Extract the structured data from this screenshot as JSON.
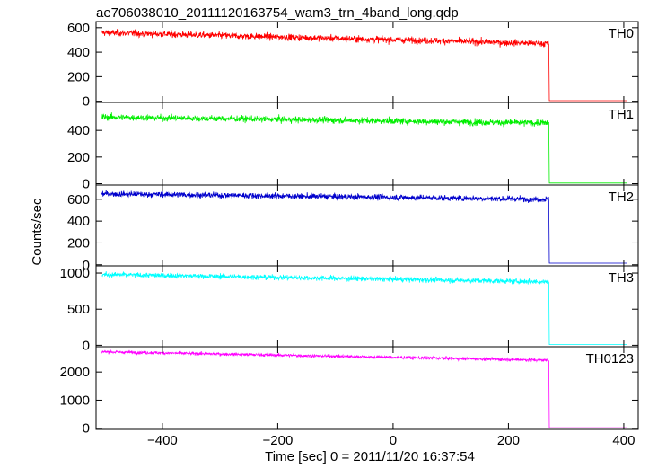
{
  "chart_data": {
    "type": "line",
    "title": "ae706038010_20111120163754_wam3_trn_4band_long.qdp",
    "xlabel": "Time [sec] 0 = 2011/11/20 16:37:54",
    "ylabel": "Counts/sec",
    "xlim": [
      -515,
      425
    ],
    "x_ticks": [
      -400,
      -200,
      0,
      200,
      400
    ],
    "x_tick_labels": [
      "−400",
      "−200",
      "0",
      "200",
      "400"
    ],
    "grid": false,
    "step_time": 270,
    "x_start": -505,
    "x_end": 405,
    "panels": [
      {
        "name": "TH0",
        "color": "#ff0000",
        "ylim": [
          -10,
          650
        ],
        "yticks": [
          0,
          200,
          400,
          600
        ],
        "start_level": 560,
        "end_level": 470,
        "noise": 45,
        "after_level": 5
      },
      {
        "name": "TH1",
        "color": "#00ee00",
        "ylim": [
          -10,
          610
        ],
        "yticks": [
          0,
          200,
          400
        ],
        "start_level": 500,
        "end_level": 455,
        "noise": 40,
        "after_level": 5
      },
      {
        "name": "TH2",
        "color": "#0000cc",
        "ylim": [
          -10,
          730
        ],
        "yticks": [
          0,
          200,
          400,
          600
        ],
        "start_level": 650,
        "end_level": 600,
        "noise": 45,
        "after_level": 15
      },
      {
        "name": "TH3",
        "color": "#00ffff",
        "ylim": [
          -20,
          1100
        ],
        "yticks": [
          0,
          500,
          1000
        ],
        "start_level": 980,
        "end_level": 880,
        "noise": 60,
        "after_level": 10
      },
      {
        "name": "TH0123",
        "color": "#ff00ff",
        "ylim": [
          -40,
          2900
        ],
        "yticks": [
          0,
          1000,
          2000
        ],
        "start_level": 2720,
        "end_level": 2420,
        "noise": 90,
        "after_level": 20
      }
    ]
  }
}
